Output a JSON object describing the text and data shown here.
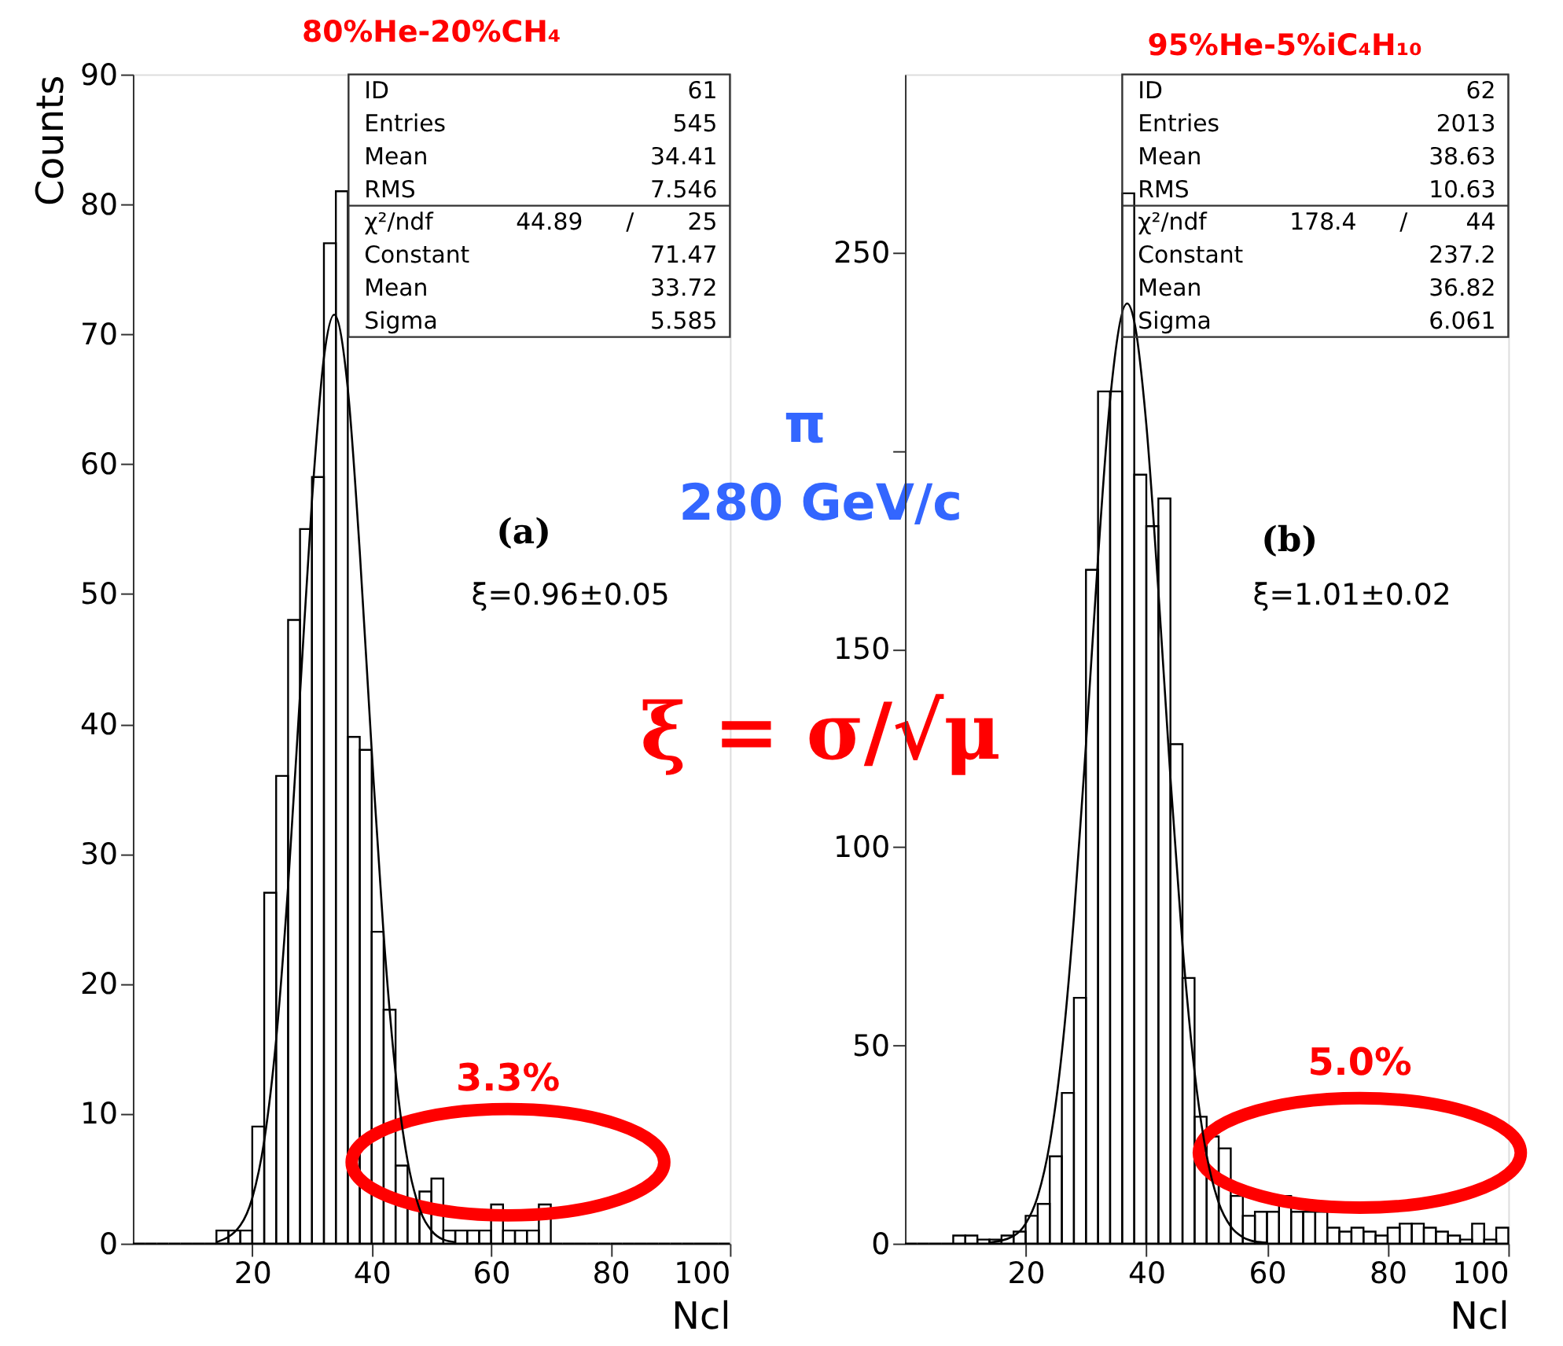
{
  "chart_data": [
    {
      "type": "histogram",
      "title": "80%He-20%CH₄",
      "xlabel": "Ncl",
      "ylabel": "Counts",
      "color": "#000000",
      "grid": false,
      "bins": [
        0,
        2,
        4,
        6,
        8,
        10,
        12,
        14,
        16,
        18,
        20,
        22,
        24,
        26,
        28,
        30,
        32,
        34,
        36,
        38,
        40,
        42,
        44,
        46,
        48,
        50,
        52,
        54,
        56,
        58,
        60,
        62,
        64,
        66,
        68,
        70,
        72,
        74,
        76,
        78,
        80,
        82,
        84,
        86,
        88,
        90,
        92,
        94,
        96,
        98,
        100
      ],
      "values": [
        0,
        0,
        0,
        0,
        0,
        0,
        0,
        1,
        1,
        1,
        9,
        27,
        36,
        48,
        55,
        59,
        77,
        81,
        39,
        38,
        24,
        18,
        6,
        3,
        4,
        5,
        1,
        1,
        1,
        1,
        3,
        1,
        1,
        1,
        3,
        0,
        0,
        0,
        0,
        0,
        0,
        0,
        0,
        0,
        0,
        0,
        0,
        0,
        0,
        0
      ],
      "xlim": [
        0,
        100
      ],
      "ylim": [
        0,
        90
      ],
      "xticks": [
        20,
        40,
        60,
        80,
        100
      ],
      "yticks": [
        0,
        10,
        20,
        30,
        40,
        50,
        60,
        70,
        80,
        90
      ],
      "series": [
        {
          "type": "line",
          "color": "#000000",
          "x": [
            14,
            18,
            20,
            22,
            24,
            26,
            28,
            30,
            32,
            33.72,
            36,
            38,
            40,
            42,
            44,
            46,
            48,
            50,
            52,
            54
          ],
          "values": [
            0.1,
            1.4,
            3.5,
            7.9,
            15.7,
            27.5,
            42.3,
            57.2,
            68.2,
            71.5,
            65.8,
            53.3,
            38.0,
            23.8,
            13.1,
            6.4,
            2.7,
            1.0,
            0.3,
            0.1
          ]
        }
      ],
      "annotations": [
        "ID",
        "61",
        "Entries",
        "545",
        "Mean",
        "34.41",
        "RMS",
        "7.546",
        "χ²/ndf",
        "44.89",
        "/",
        "25",
        "Constant",
        "71.47",
        "Mean",
        "33.72",
        "Sigma",
        "5.585",
        "(a)",
        "ξ=0.96±0.05",
        "3.3%",
        "π",
        "280 GeV/c",
        "ξ = σ/√μ"
      ]
    },
    {
      "type": "histogram",
      "title": "95%He-5%iC₄H₁₀",
      "xlabel": "Ncl",
      "color": "#000000",
      "grid": false,
      "bins": [
        0,
        2,
        4,
        6,
        8,
        10,
        12,
        14,
        16,
        18,
        20,
        22,
        24,
        26,
        28,
        30,
        32,
        34,
        36,
        38,
        40,
        42,
        44,
        46,
        48,
        50,
        52,
        54,
        56,
        58,
        60,
        62,
        64,
        66,
        68,
        70,
        72,
        74,
        76,
        78,
        80,
        82,
        84,
        86,
        88,
        90,
        92,
        94,
        96,
        98,
        100
      ],
      "values": [
        0,
        0,
        0,
        0,
        2,
        2,
        1,
        1,
        2,
        3,
        7,
        10,
        22,
        38,
        62,
        170,
        215,
        215,
        265,
        194,
        181,
        188,
        126,
        67,
        32,
        27,
        24,
        12,
        7,
        8,
        8,
        12,
        8,
        8,
        8,
        4,
        3,
        4,
        3,
        2,
        4,
        5,
        5,
        4,
        3,
        2,
        1,
        5,
        1,
        4
      ],
      "xlim": [
        0,
        100
      ],
      "ylim": [
        0,
        295
      ],
      "xticks": [
        20,
        40,
        60,
        80,
        100
      ],
      "yticks": [
        0,
        50,
        100,
        150,
        {
          "value": 200,
          "label": null
        },
        250
      ],
      "series": [
        {
          "type": "line",
          "color": "#000000",
          "x": [
            14,
            18,
            20,
            22,
            24,
            26,
            28,
            30,
            32,
            34,
            36.82,
            38,
            40,
            42,
            44,
            46,
            48,
            50,
            52,
            54,
            56,
            58,
            60
          ],
          "values": [
            0.2,
            1.9,
            5.0,
            11.9,
            25.3,
            48.2,
            82.3,
            126.0,
            173.0,
            212.9,
            237.2,
            232.7,
            206.7,
            164.7,
            117.6,
            75.3,
            43.3,
            22.3,
            10.3,
            4.3,
            1.6,
            0.5,
            0.2
          ]
        }
      ],
      "annotations": [
        "ID",
        "62",
        "Entries",
        "2013",
        "Mean",
        "38.63",
        "RMS",
        "10.63",
        "χ²/ndf",
        "178.4",
        "/",
        "44",
        "Constant",
        "237.2",
        "Mean",
        "36.82",
        "Sigma",
        "6.061",
        "(b)",
        "ξ=1.01±0.02",
        "5.0%"
      ]
    }
  ]
}
